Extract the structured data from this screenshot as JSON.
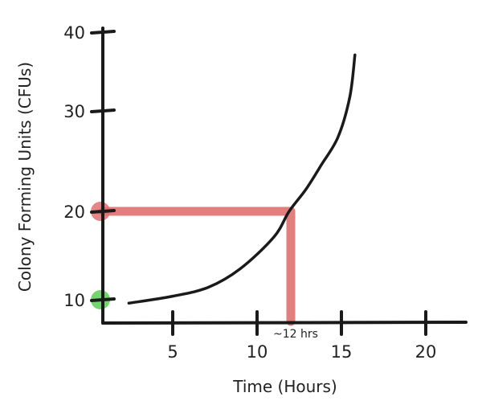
{
  "chart_data": {
    "type": "line",
    "title": "",
    "xlabel": "Time (Hours)",
    "ylabel": "Colony Forming Units (CFUs)",
    "x_ticks": [
      "5",
      "10",
      "15",
      "20"
    ],
    "y_ticks": [
      "10",
      "20",
      "30",
      "40"
    ],
    "xlim": [
      0,
      22
    ],
    "ylim": [
      8,
      40
    ],
    "grid": false,
    "series": [
      {
        "x": [
          2.4,
          5.0,
          7.1,
          9.0,
          11.0,
          11.9,
          12.9,
          13.8,
          14.8,
          15.5,
          15.8
        ],
        "y": [
          9.6,
          10.4,
          11.4,
          13.5,
          17.1,
          20.0,
          22.2,
          24.6,
          27.4,
          31.8,
          37.1
        ],
        "color": "#1a1a1a"
      }
    ],
    "annotations": {
      "guide_point": {
        "x": 12,
        "y": 20,
        "color": "#e07070"
      },
      "time_label": "~12 hrs",
      "highlight_start": {
        "y": 10,
        "color": "#74d46f"
      },
      "highlight_target": {
        "y": 20,
        "color": "#e07070"
      }
    }
  }
}
